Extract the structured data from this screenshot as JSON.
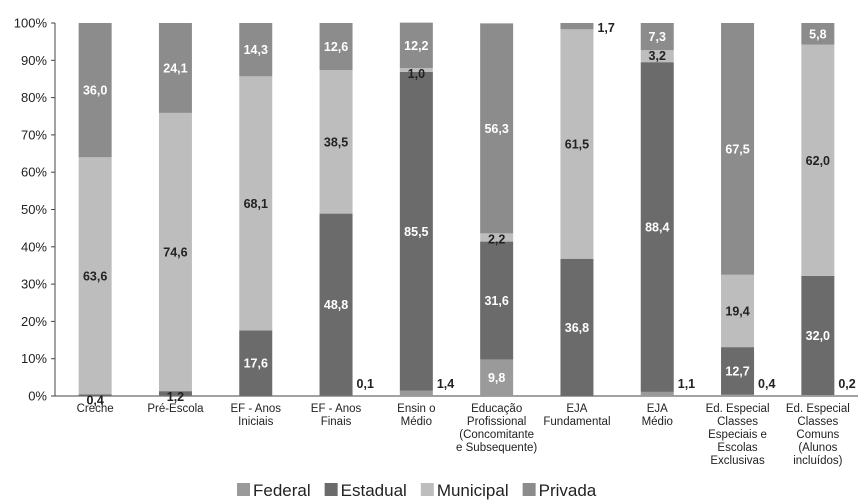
{
  "chart_data": {
    "type": "bar",
    "stacked": true,
    "categories": [
      [
        "Creche"
      ],
      [
        "Pré-Escola"
      ],
      [
        "EF - Anos",
        "Iniciais"
      ],
      [
        "EF - Anos",
        "Finais"
      ],
      [
        "Ensin o",
        "Médio"
      ],
      [
        "Educação",
        "Profissional",
        "(Concomitante",
        "e Subsequente)"
      ],
      [
        "EJA",
        "Fundamental"
      ],
      [
        "EJA",
        "Médio"
      ],
      [
        "Ed. Especial",
        "Classes",
        "Especiais e",
        "Escolas",
        "Exclusivas"
      ],
      [
        "Ed. Especial",
        "Classes",
        "Comuns",
        "(Alunos",
        "incluídos)"
      ]
    ],
    "series": [
      {
        "name": "Federal",
        "color": "#9a9a9a",
        "values": [
          0.0,
          0.1,
          0.0,
          0.1,
          1.4,
          9.8,
          0.0,
          1.1,
          0.4,
          0.2
        ],
        "labels": [
          "",
          "",
          "",
          "0,1",
          "1,4",
          "9,8",
          "",
          "1,1",
          "0,4",
          "0,2"
        ]
      },
      {
        "name": "Estadual",
        "color": "#6b6b6b",
        "values": [
          0.4,
          1.2,
          17.6,
          48.8,
          85.5,
          31.6,
          36.8,
          88.4,
          12.7,
          32.0
        ],
        "labels": [
          "0,4",
          "1,2",
          "17,6",
          "48,8",
          "85,5",
          "31,6",
          "36,8",
          "88,4",
          "12,7",
          "32,0"
        ]
      },
      {
        "name": "Municipal",
        "color": "#bdbdbd",
        "values": [
          63.6,
          74.6,
          68.1,
          38.5,
          1.0,
          2.2,
          61.5,
          3.2,
          19.4,
          62.0
        ],
        "labels": [
          "63,6",
          "74,6",
          "68,1",
          "38,5",
          "1,0",
          "2,2",
          "61,5",
          "3,2",
          "19,4",
          "62,0"
        ]
      },
      {
        "name": "Privada",
        "color": "#8c8c8c",
        "values": [
          36.0,
          24.1,
          14.3,
          12.6,
          12.2,
          56.3,
          1.7,
          7.3,
          67.5,
          5.8
        ],
        "labels": [
          "36,0",
          "24,1",
          "14,3",
          "12,6",
          "12,2",
          "56,3",
          "1,7",
          "7,3",
          "67,5",
          "5,8"
        ]
      }
    ],
    "ylim": [
      0,
      100
    ],
    "yticks": [
      "0%",
      "10%",
      "20%",
      "30%",
      "40%",
      "50%",
      "60%",
      "70%",
      "80%",
      "90%",
      "100%"
    ],
    "legend_position": "bottom",
    "title": "",
    "xlabel": "",
    "ylabel": ""
  }
}
